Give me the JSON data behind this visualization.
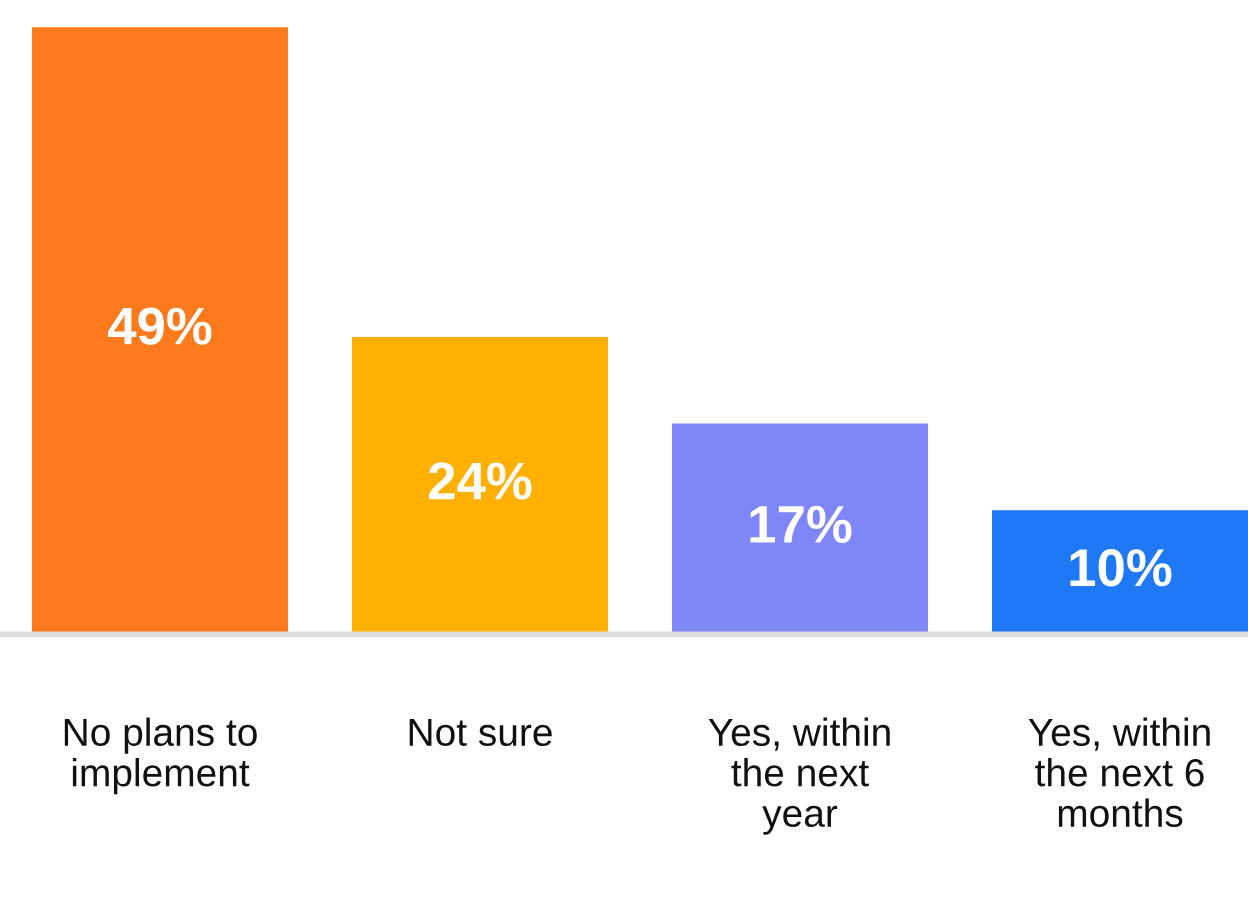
{
  "chart_data": {
    "type": "bar",
    "categories": [
      "No plans to implement",
      "Not sure",
      "Yes, within the next year",
      "Yes, within the next 6 months"
    ],
    "values": [
      49,
      24,
      17,
      10
    ],
    "value_labels": [
      "49%",
      "24%",
      "17%",
      "10%"
    ],
    "colors": [
      "#ff7a1c",
      "#ffb000",
      "#7f86f8",
      "#1f78f5"
    ],
    "grid": false,
    "legend": false
  }
}
